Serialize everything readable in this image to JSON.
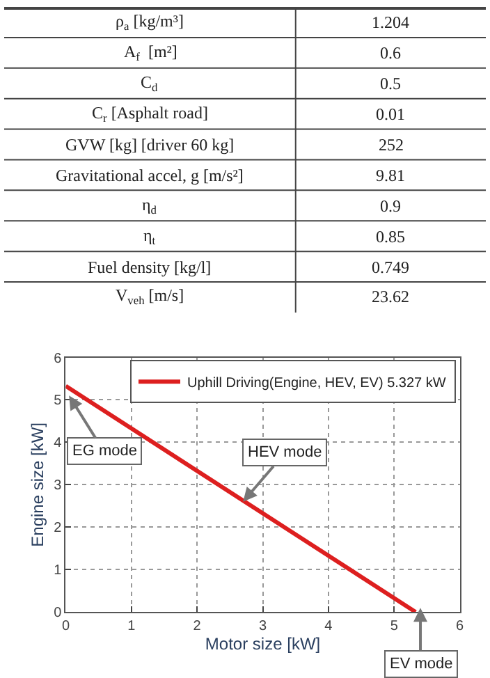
{
  "chart_data": [
    {
      "type": "other",
      "categories": [
        "ρ$_{a}$ [kg/m³]",
        "A$_{f}$  [m²]",
        "C$_{d}$",
        "C$_{r}$ [Asphalt road]",
        "GVW [kg] [driver 60 kg]",
        "Gravitational accel, g [m/s²]",
        "η$_{d}$",
        "η$_{t}$",
        "Fuel density [kg/l]",
        "V$_{veh}$ [m/s]"
      ],
      "value_labels": [
        "1.204",
        "0.6",
        "0.5",
        "0.01",
        "252",
        "9.81",
        "0.9",
        "0.85",
        "0.749",
        "23.62"
      ]
    },
    {
      "type": "line",
      "xlabel": "Motor size [kW]",
      "ylabel": "Engine size [kW]",
      "x": [
        0,
        5.327
      ],
      "series": [
        {
          "name": "Uphill Driving(Engine, HEV, EV) 5.327 kW",
          "color": "#dd1f1f",
          "values": [
            5.327,
            0
          ]
        }
      ],
      "xlim": [
        0,
        6
      ],
      "ylim": [
        0,
        6
      ],
      "xticks": [
        0,
        1,
        2,
        3,
        4,
        5,
        6
      ],
      "yticks": [
        0,
        1,
        2,
        3,
        4,
        5,
        6
      ],
      "grid": true,
      "legend": "top right",
      "marker": "none",
      "line_style": "solid",
      "annotations": [
        {
          "text": "EG mode",
          "x": 0.05,
          "y": 5.1
        },
        {
          "text": "HEV mode",
          "x": 2.7,
          "y": 2.6
        },
        {
          "text": "EV mode",
          "x": 5.4,
          "y": 0.1
        }
      ]
    }
  ]
}
